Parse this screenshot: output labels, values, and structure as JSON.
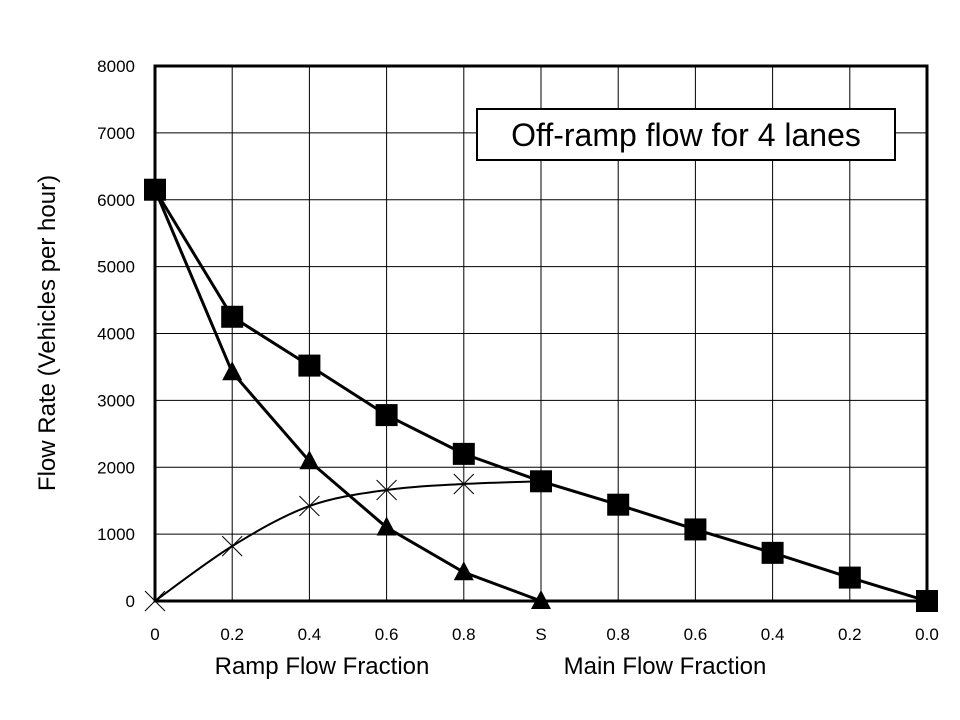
{
  "chart_data": {
    "type": "line",
    "title": "",
    "annotation": "Off-ramp flow for 4 lanes",
    "ylabel": "Flow Rate (Vehicles per hour)",
    "xlabel_left": "Ramp Flow Fraction",
    "xlabel_right": "Main Flow Fraction",
    "ylim": [
      0,
      8000
    ],
    "yticks": [
      "0",
      "1000",
      "2000",
      "3000",
      "4000",
      "5000",
      "6000",
      "7000",
      "8000"
    ],
    "categories": [
      "0",
      "0.2",
      "0.4",
      "0.6",
      "0.8",
      "S",
      "0.8",
      "0.6",
      "0.4",
      "0.2",
      "0.0"
    ],
    "grid": true,
    "legend": "none",
    "series": [
      {
        "marker": "square",
        "values": [
          6150,
          4250,
          3520,
          2780,
          2200,
          1790,
          1440,
          1070,
          720,
          350,
          0
        ]
      },
      {
        "marker": "triangle",
        "values": [
          6150,
          3420,
          2090,
          1100,
          430,
          0,
          null,
          null,
          null,
          null,
          null
        ]
      },
      {
        "marker": "x",
        "values": [
          0,
          820,
          1420,
          1660,
          1750,
          1790,
          null,
          null,
          null,
          null,
          null
        ]
      }
    ],
    "colors": {
      "line": "#000000",
      "grid": "#000000",
      "background": "#ffffff"
    }
  }
}
